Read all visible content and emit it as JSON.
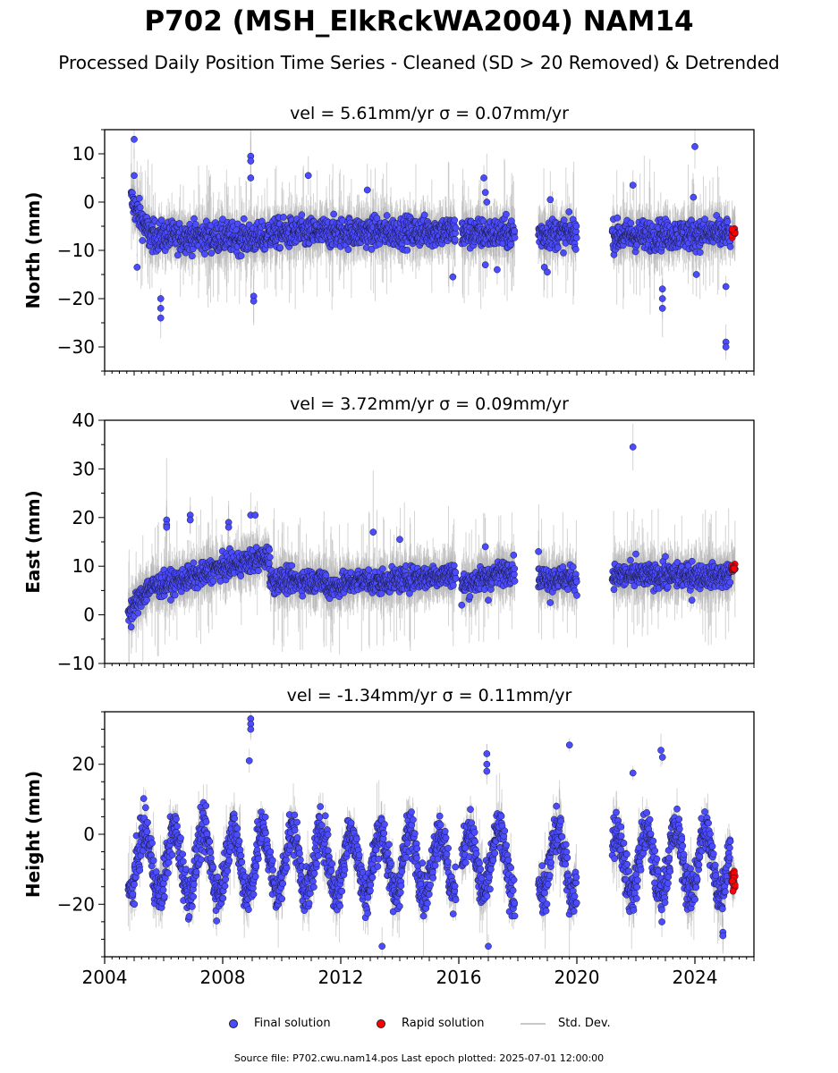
{
  "title": "P702 (MSH_ElkRckWA2004) NAM14",
  "subtitle": "Processed Daily Position Time Series - Cleaned (SD > 20 Removed) & Detrended",
  "source_note": "Source file: P702.cwu.nam14.pos  Last epoch plotted: 2025-07-01 12:00:00",
  "colors": {
    "final": "#4b4bff",
    "rapid": "#ff0000",
    "std": "#b0b0b0",
    "edge": "#1a1a3a"
  },
  "legend": {
    "final": "Final solution",
    "rapid": "Rapid solution",
    "std": "Std. Dev."
  },
  "chart_data": [
    {
      "type": "scatter",
      "panel_title": "vel = 5.61mm/yr   σ = 0.07mm/yr",
      "ylabel": "North (mm)",
      "xlim": [
        2004,
        2026
      ],
      "ylim": [
        -35,
        15
      ],
      "yticks": [
        10,
        0,
        -10,
        -20,
        -30
      ],
      "segments": [
        {
          "x0": 2004.9,
          "x1": 2005.5,
          "y0": 0.5,
          "y1": -6.5
        },
        {
          "x0": 2005.5,
          "x1": 2009.5,
          "y0": -7.0,
          "y1": -7.5
        },
        {
          "x0": 2009.5,
          "x1": 2015.9,
          "y0": -6.5,
          "y1": -6.0
        },
        {
          "x0": 2016.1,
          "x1": 2017.9,
          "y0": -6.5,
          "y1": -6.5
        },
        {
          "x0": 2018.7,
          "x1": 2020.0,
          "y0": -6.5,
          "y1": -6.5
        },
        {
          "x0": 2021.2,
          "x1": 2025.2,
          "y0": -7.0,
          "y1": -6.5
        }
      ],
      "noise": 2.2,
      "outliers": [
        [
          2005.0,
          13
        ],
        [
          2005.0,
          5.5
        ],
        [
          2005.1,
          -13.5
        ],
        [
          2005.9,
          -20
        ],
        [
          2005.9,
          -22
        ],
        [
          2005.9,
          -24
        ],
        [
          2008.95,
          9.5
        ],
        [
          2008.95,
          8.5
        ],
        [
          2008.95,
          5
        ],
        [
          2009.05,
          -19.5
        ],
        [
          2009.05,
          -20.5
        ],
        [
          2010.9,
          5.5
        ],
        [
          2012.9,
          2.5
        ],
        [
          2016.85,
          5
        ],
        [
          2016.9,
          2
        ],
        [
          2016.95,
          0
        ],
        [
          2016.9,
          -13
        ],
        [
          2017.3,
          -14
        ],
        [
          2015.8,
          -15.5
        ],
        [
          2018.9,
          -13.5
        ],
        [
          2019.0,
          -14.5
        ],
        [
          2019.1,
          0.5
        ],
        [
          2021.9,
          3.5
        ],
        [
          2022.9,
          -18
        ],
        [
          2022.9,
          -20
        ],
        [
          2022.9,
          -22
        ],
        [
          2023.95,
          1
        ],
        [
          2024.0,
          11.5
        ],
        [
          2024.05,
          -15
        ],
        [
          2025.05,
          -17.5
        ],
        [
          2025.05,
          -29
        ],
        [
          2025.05,
          -30
        ]
      ],
      "rapid": {
        "x": 2025.3,
        "y": -6.5,
        "spread": 1.2
      }
    },
    {
      "type": "scatter",
      "panel_title": "vel = 3.72mm/yr   σ = 0.09mm/yr",
      "ylabel": "East (mm)",
      "xlim": [
        2004,
        2026
      ],
      "ylim": [
        -10,
        40
      ],
      "yticks": [
        40,
        30,
        20,
        10,
        0,
        -10
      ],
      "segments": [
        {
          "x0": 2004.8,
          "x1": 2005.5,
          "y0": 0.5,
          "y1": 5.5
        },
        {
          "x0": 2005.5,
          "x1": 2007.5,
          "y0": 5.5,
          "y1": 8.5
        },
        {
          "x0": 2007.5,
          "x1": 2009.6,
          "y0": 9.0,
          "y1": 12.0
        },
        {
          "x0": 2009.6,
          "x1": 2011.5,
          "y0": 7.0,
          "y1": 7.0
        },
        {
          "x0": 2011.5,
          "x1": 2013.0,
          "y0": 5.5,
          "y1": 7.5
        },
        {
          "x0": 2013.0,
          "x1": 2015.9,
          "y0": 6.5,
          "y1": 8.5
        },
        {
          "x0": 2016.1,
          "x1": 2017.9,
          "y0": 6.0,
          "y1": 9.5
        },
        {
          "x0": 2018.7,
          "x1": 2020.0,
          "y0": 7.5,
          "y1": 7.5
        },
        {
          "x0": 2021.2,
          "x1": 2025.2,
          "y0": 8.0,
          "y1": 8.0
        }
      ],
      "noise": 1.7,
      "outliers": [
        [
          2004.9,
          -2.5
        ],
        [
          2006.1,
          19.5
        ],
        [
          2006.1,
          18.5
        ],
        [
          2006.1,
          18
        ],
        [
          2006.9,
          20.5
        ],
        [
          2006.9,
          19.5
        ],
        [
          2008.2,
          19
        ],
        [
          2008.2,
          18
        ],
        [
          2008.95,
          20.5
        ],
        [
          2009.1,
          20.5
        ],
        [
          2013.1,
          17
        ],
        [
          2014.0,
          15.5
        ],
        [
          2016.1,
          2
        ],
        [
          2016.9,
          14
        ],
        [
          2017.0,
          3
        ],
        [
          2018.7,
          13
        ],
        [
          2019.1,
          2.5
        ],
        [
          2020.0,
          4
        ],
        [
          2021.9,
          34.5
        ],
        [
          2022.0,
          12.5
        ],
        [
          2023.0,
          12
        ],
        [
          2023.9,
          11
        ],
        [
          2023.9,
          3
        ]
      ],
      "rapid": {
        "x": 2025.3,
        "y": 9.5,
        "spread": 1.0
      }
    },
    {
      "type": "scatter",
      "panel_title": "vel = -1.34mm/yr   σ = 0.11mm/yr",
      "ylabel": "Height (mm)",
      "xlim": [
        2004,
        2026
      ],
      "ylim": [
        -35,
        35
      ],
      "yticks": [
        20,
        0,
        -20
      ],
      "xticks": [
        2004,
        2008,
        2012,
        2016,
        2020,
        2024
      ],
      "segments": [
        {
          "x0": 2004.8,
          "x1": 2015.9,
          "y0": -8,
          "y1": -8
        },
        {
          "x0": 2016.1,
          "x1": 2017.9,
          "y0": -8,
          "y1": -8
        },
        {
          "x0": 2018.7,
          "x1": 2020.0,
          "y0": -8,
          "y1": -8
        },
        {
          "x0": 2021.2,
          "x1": 2025.2,
          "y0": -8,
          "y1": -8
        }
      ],
      "seasonal_amplitude": 9,
      "noise": 4.5,
      "outliers": [
        [
          2008.95,
          33
        ],
        [
          2008.95,
          31.5
        ],
        [
          2008.95,
          30
        ],
        [
          2008.9,
          21
        ],
        [
          2013.4,
          -32
        ],
        [
          2016.95,
          23
        ],
        [
          2016.95,
          20
        ],
        [
          2016.95,
          18
        ],
        [
          2017.0,
          -32
        ],
        [
          2019.75,
          25.5
        ],
        [
          2019.9,
          -22
        ],
        [
          2021.9,
          17.5
        ],
        [
          2022.85,
          24
        ],
        [
          2022.9,
          22
        ],
        [
          2024.95,
          -28
        ],
        [
          2024.95,
          -29
        ]
      ],
      "rapid": {
        "x": 2025.3,
        "y": -13,
        "spread": 3.5
      }
    }
  ]
}
